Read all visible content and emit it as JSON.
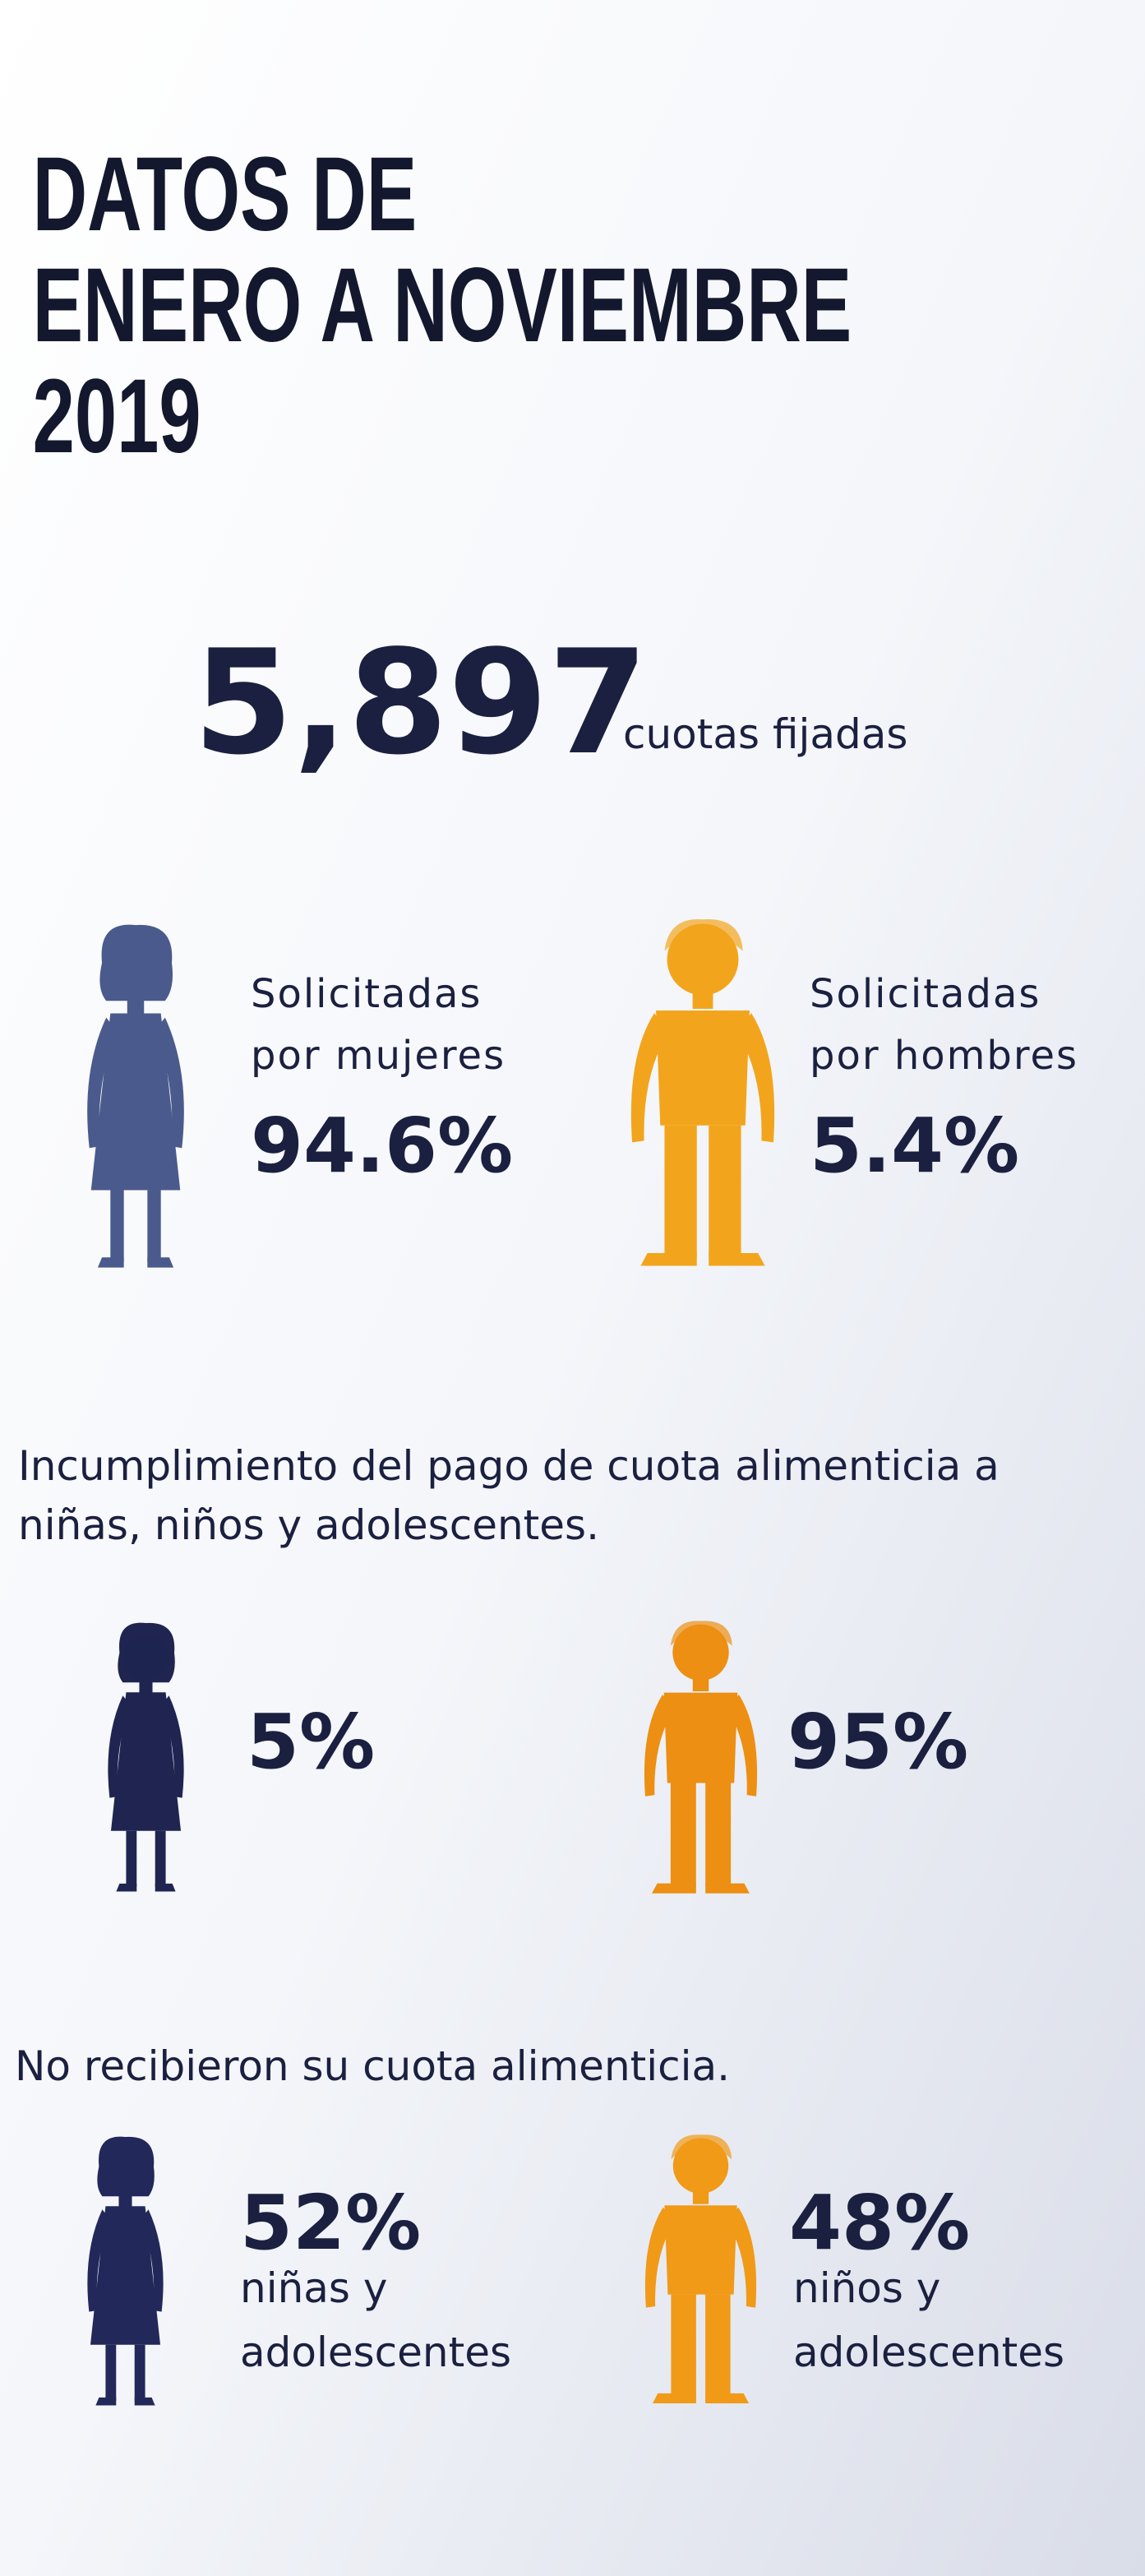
{
  "header": {
    "title_lines": [
      "DATOS DE",
      "ENERO A NOVIEMBRE",
      "2019"
    ]
  },
  "total": {
    "value": "5,897",
    "label": "cuotas fijadas"
  },
  "requests": [
    {
      "label_lines": [
        "Solicitadas",
        "por mujeres"
      ],
      "percent": "94.6%"
    },
    {
      "label_lines": [
        "Solicitadas",
        "por hombres"
      ],
      "percent": "5.4%"
    }
  ],
  "noncompliance": {
    "text_lines": [
      "Incumplimiento del pago de cuota alimenticia a",
      "niñas, niños y adolescentes."
    ],
    "items": [
      {
        "percent": "5%"
      },
      {
        "percent": "95%"
      }
    ]
  },
  "not_received": {
    "text": "No recibieron su cuota alimenticia.",
    "items": [
      {
        "percent": "52%",
        "label_lines": [
          "niñas y",
          "adolescentes"
        ]
      },
      {
        "percent": "48%",
        "label_lines": [
          "niños y",
          "adolescentes"
        ]
      }
    ]
  }
}
